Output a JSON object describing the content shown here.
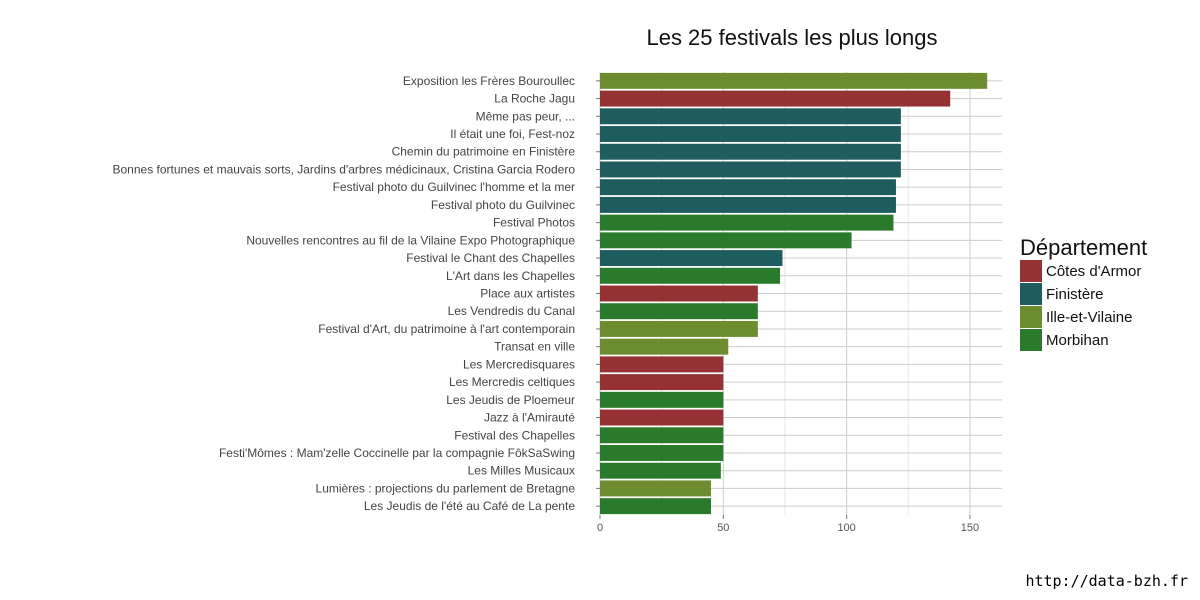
{
  "watermark": "http://data-bzh.fr",
  "chart_data": {
    "type": "bar",
    "orientation": "horizontal",
    "title": "Les 25 festivals les plus longs",
    "xlabel": "",
    "ylabel": "",
    "xlim": [
      0,
      163
    ],
    "xticks": [
      0,
      50,
      100,
      150
    ],
    "grid": true,
    "legend": {
      "title": "Département",
      "placement": "right",
      "entries": [
        {
          "name": "Côtes d'Armor",
          "color": "#953334"
        },
        {
          "name": "Finistère",
          "color": "#1f5c5f"
        },
        {
          "name": "Ille-et-Vilaine",
          "color": "#6c8c2f"
        },
        {
          "name": "Morbihan",
          "color": "#2a7a2b"
        }
      ]
    },
    "categories": [
      "Exposition les Frères Bouroullec",
      "La Roche Jagu",
      "Même pas peur, ...",
      "Il était une foi, Fest-noz",
      "Chemin du patrimoine en Finistère",
      "Bonnes fortunes et mauvais sorts, Jardins d'arbres médicinaux, Cristina Garcia Rodero",
      "Festival photo du Guilvinec l'homme et la mer",
      "Festival photo du Guilvinec",
      "Festival Photos",
      "Nouvelles rencontres au fil de la Vilaine Expo Photographique",
      "Festival le Chant des Chapelles",
      "L'Art dans les Chapelles",
      "Place aux artistes",
      "Les Vendredis du Canal",
      "Festival d'Art, du patrimoine à l'art contemporain",
      "Transat en ville",
      "Les Mercredisquares",
      "Les Mercredis celtiques",
      "Les Jeudis de Ploemeur",
      "Jazz à l'Amirauté",
      "Festival des Chapelles",
      "Festi'Mômes : Mam'zelle Coccinelle par la compagnie FôkSaSwing",
      "Les Milles Musicaux",
      "Lumières : projections du parlement de Bretagne",
      "Les Jeudis de l'été au Café de La pente"
    ],
    "values": [
      157,
      142,
      122,
      122,
      122,
      122,
      120,
      120,
      119,
      102,
      74,
      73,
      64,
      64,
      64,
      52,
      50,
      50,
      50,
      50,
      50,
      50,
      49,
      45,
      45
    ],
    "groups": [
      "Ille-et-Vilaine",
      "Côtes d'Armor",
      "Finistère",
      "Finistère",
      "Finistère",
      "Finistère",
      "Finistère",
      "Finistère",
      "Morbihan",
      "Morbihan",
      "Finistère",
      "Morbihan",
      "Côtes d'Armor",
      "Morbihan",
      "Ille-et-Vilaine",
      "Ille-et-Vilaine",
      "Côtes d'Armor",
      "Côtes d'Armor",
      "Morbihan",
      "Côtes d'Armor",
      "Morbihan",
      "Morbihan",
      "Morbihan",
      "Ille-et-Vilaine",
      "Morbihan"
    ]
  }
}
